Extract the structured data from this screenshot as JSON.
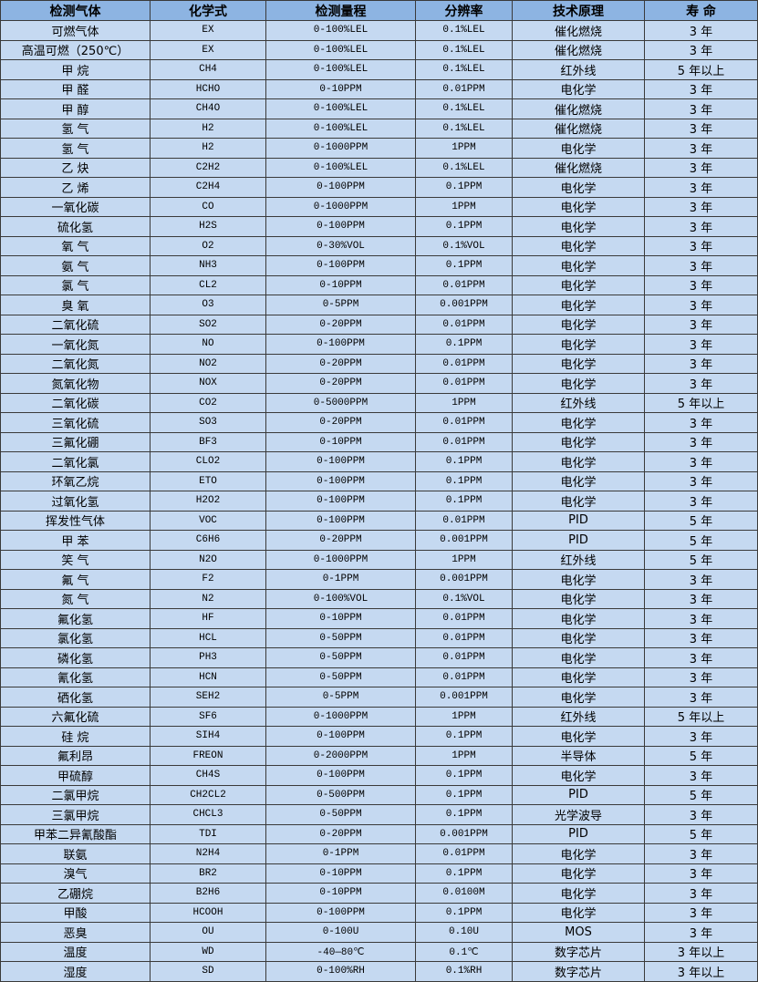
{
  "headers": [
    "检测气体",
    "化学式",
    "检测量程",
    "分辨率",
    "技术原理",
    "寿 命"
  ],
  "rows": [
    [
      "可燃气体",
      "EX",
      "0-100%LEL",
      "0.1%LEL",
      "催化燃烧",
      "3 年"
    ],
    [
      "高温可燃（250℃）",
      "EX",
      "0-100%LEL",
      "0.1%LEL",
      "催化燃烧",
      "3 年"
    ],
    [
      "甲 烷",
      "CH4",
      "0-100%LEL",
      "0.1%LEL",
      "红外线",
      "5 年以上"
    ],
    [
      "甲 醛",
      "HCHO",
      "0-10PPM",
      "0.01PPM",
      "电化学",
      "3 年"
    ],
    [
      "甲 醇",
      "CH4O",
      "0-100%LEL",
      "0.1%LEL",
      "催化燃烧",
      "3 年"
    ],
    [
      "氢 气",
      "H2",
      "0-100%LEL",
      "0.1%LEL",
      "催化燃烧",
      "3 年"
    ],
    [
      "氢 气",
      "H2",
      "0-1000PPM",
      "1PPM",
      "电化学",
      "3 年"
    ],
    [
      "乙 炔",
      "C2H2",
      "0-100%LEL",
      "0.1%LEL",
      "催化燃烧",
      "3 年"
    ],
    [
      "乙 烯",
      "C2H4",
      "0-100PPM",
      "0.1PPM",
      "电化学",
      "3 年"
    ],
    [
      "一氧化碳",
      "CO",
      "0-1000PPM",
      "1PPM",
      "电化学",
      "3 年"
    ],
    [
      "硫化氢",
      "H2S",
      "0-100PPM",
      "0.1PPM",
      "电化学",
      "3 年"
    ],
    [
      "氧 气",
      "O2",
      "0-30%VOL",
      "0.1%VOL",
      "电化学",
      "3 年"
    ],
    [
      "氨 气",
      "NH3",
      "0-100PPM",
      "0.1PPM",
      "电化学",
      "3 年"
    ],
    [
      "氯 气",
      "CL2",
      "0-10PPM",
      "0.01PPM",
      "电化学",
      "3 年"
    ],
    [
      "臭 氧",
      "O3",
      "0-5PPM",
      "0.001PPM",
      "电化学",
      "3 年"
    ],
    [
      "二氧化硫",
      "SO2",
      "0-20PPM",
      "0.01PPM",
      "电化学",
      "3 年"
    ],
    [
      "一氧化氮",
      "NO",
      "0-100PPM",
      "0.1PPM",
      "电化学",
      "3 年"
    ],
    [
      "二氧化氮",
      "NO2",
      "0-20PPM",
      "0.01PPM",
      "电化学",
      "3 年"
    ],
    [
      "氮氧化物",
      "NOX",
      "0-20PPM",
      "0.01PPM",
      "电化学",
      "3 年"
    ],
    [
      "二氧化碳",
      "CO2",
      "0-5000PPM",
      "1PPM",
      "红外线",
      "5 年以上"
    ],
    [
      "三氧化硫",
      "SO3",
      "0-20PPM",
      "0.01PPM",
      "电化学",
      "3 年"
    ],
    [
      "三氟化硼",
      "BF3",
      "0-10PPM",
      "0.01PPM",
      "电化学",
      "3 年"
    ],
    [
      "二氧化氯",
      "CLO2",
      "0-100PPM",
      "0.1PPM",
      "电化学",
      "3 年"
    ],
    [
      "环氧乙烷",
      "ETO",
      "0-100PPM",
      "0.1PPM",
      "电化学",
      "3 年"
    ],
    [
      "过氧化氢",
      "H2O2",
      "0-100PPM",
      "0.1PPM",
      "电化学",
      "3 年"
    ],
    [
      "挥发性气体",
      "VOC",
      "0-100PPM",
      "0.01PPM",
      "PID",
      "5 年"
    ],
    [
      "甲 苯",
      "C6H6",
      "0-20PPM",
      "0.001PPM",
      "PID",
      "5 年"
    ],
    [
      "笑 气",
      "N2O",
      "0-1000PPM",
      "1PPM",
      "红外线",
      "5 年"
    ],
    [
      "氟 气",
      "F2",
      "0-1PPM",
      "0.001PPM",
      "电化学",
      "3 年"
    ],
    [
      "氮 气",
      "N2",
      "0-100%VOL",
      "0.1%VOL",
      "电化学",
      "3 年"
    ],
    [
      "氟化氢",
      "HF",
      "0-10PPM",
      "0.01PPM",
      "电化学",
      "3 年"
    ],
    [
      "氯化氢",
      "HCL",
      "0-50PPM",
      "0.01PPM",
      "电化学",
      "3 年"
    ],
    [
      "磷化氢",
      "PH3",
      "0-50PPM",
      "0.01PPM",
      "电化学",
      "3 年"
    ],
    [
      "氰化氢",
      "HCN",
      "0-50PPM",
      "0.01PPM",
      "电化学",
      "3 年"
    ],
    [
      "硒化氢",
      "SEH2",
      "0-5PPM",
      "0.001PPM",
      "电化学",
      "3 年"
    ],
    [
      "六氟化硫",
      "SF6",
      "0-1000PPM",
      "1PPM",
      "红外线",
      "5 年以上"
    ],
    [
      "硅 烷",
      "SIH4",
      "0-100PPM",
      "0.1PPM",
      "电化学",
      "3 年"
    ],
    [
      "氟利昂",
      "FREON",
      "0-2000PPM",
      "1PPM",
      "半导体",
      "5 年"
    ],
    [
      "甲硫醇",
      "CH4S",
      "0-100PPM",
      "0.1PPM",
      "电化学",
      "3 年"
    ],
    [
      "二氯甲烷",
      "CH2CL2",
      "0-500PPM",
      "0.1PPM",
      "PID",
      "5 年"
    ],
    [
      "三氯甲烷",
      "CHCL3",
      "0-50PPM",
      "0.1PPM",
      "光学波导",
      "3 年"
    ],
    [
      "甲苯二异氰酸酯",
      "TDI",
      "0-20PPM",
      "0.001PPM",
      "PID",
      "5 年"
    ],
    [
      "联氨",
      "N2H4",
      "0-1PPM",
      "0.01PPM",
      "电化学",
      "3 年"
    ],
    [
      "溴气",
      "BR2",
      "0-10PPM",
      "0.1PPM",
      "电化学",
      "3 年"
    ],
    [
      "乙硼烷",
      "B2H6",
      "0-10PPM",
      "0.0100M",
      "电化学",
      "3 年"
    ],
    [
      "甲酸",
      "HCOOH",
      "0-100PPM",
      "0.1PPM",
      "电化学",
      "3 年"
    ],
    [
      "恶臭",
      "OU",
      "0-100U",
      "0.10U",
      "MOS",
      "3 年"
    ],
    [
      "温度",
      "WD",
      "-40—80℃",
      "0.1℃",
      "数字芯片",
      "3 年以上"
    ],
    [
      "湿度",
      "SD",
      "0-100%RH",
      "0.1%RH",
      "数字芯片",
      "3 年以上"
    ]
  ],
  "colors": {
    "header_bg": "#8db4e2",
    "row_bg": "#c5d9f1",
    "border": "#3a3a3a"
  }
}
